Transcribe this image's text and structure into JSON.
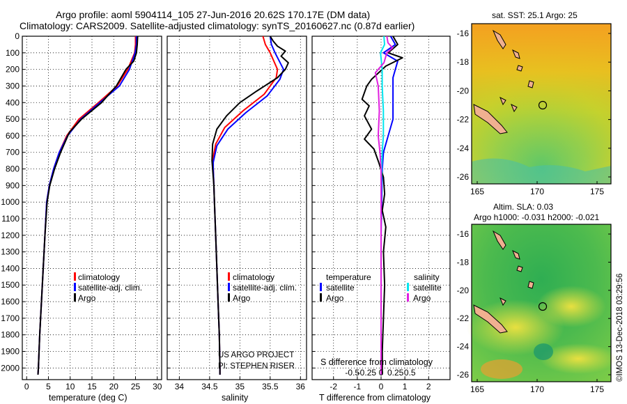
{
  "title": {
    "line1": "Argo profile: aoml 5904114_105 27-Jun-2016 20.62S 170.17E (DM data)",
    "line2": "Climatology: CARS2009. Satellite-adjusted climatology: synTS_20160627.nc (0.87d earlier)"
  },
  "colors": {
    "climatology": "#ff0000",
    "satellite": "#0000ff",
    "argo": "#000000",
    "sat_s": "#00e5ee",
    "argo_s": "#e020e0"
  },
  "depth_ticks": [
    "0",
    "100",
    "200",
    "300",
    "400",
    "500",
    "600",
    "700",
    "800",
    "900",
    "1000",
    "1100",
    "1200",
    "1300",
    "1400",
    "1500",
    "1600",
    "1700",
    "1800",
    "1900",
    "2000"
  ],
  "chart_data": [
    {
      "type": "line",
      "name": "temperature",
      "xlabel": "temperature (deg C)",
      "xlim": [
        -1,
        31
      ],
      "ylim": [
        2070,
        0
      ],
      "xticks": [
        "0",
        "5",
        "10",
        "15",
        "20",
        "25",
        "30"
      ],
      "legend": [
        "climatology",
        "satellite-adj. clim.",
        "Argo"
      ],
      "series": [
        {
          "name": "climatology",
          "points": [
            [
              25,
              0
            ],
            [
              25,
              50
            ],
            [
              24.8,
              100
            ],
            [
              23.2,
              200
            ],
            [
              20.8,
              300
            ],
            [
              16.5,
              400
            ],
            [
              12,
              500
            ],
            [
              9.2,
              600
            ],
            [
              7.5,
              700
            ],
            [
              6.2,
              800
            ],
            [
              5.2,
              900
            ],
            [
              4.6,
              1000
            ],
            [
              4.2,
              1200
            ],
            [
              3.8,
              1400
            ],
            [
              3.4,
              1600
            ],
            [
              3.0,
              1800
            ],
            [
              2.7,
              2000
            ],
            [
              2.6,
              2040
            ]
          ]
        },
        {
          "name": "satellite-adj. clim.",
          "points": [
            [
              25.2,
              0
            ],
            [
              25.2,
              50
            ],
            [
              24.9,
              100
            ],
            [
              23.6,
              200
            ],
            [
              21.3,
              300
            ],
            [
              16.8,
              400
            ],
            [
              12.4,
              500
            ],
            [
              9.4,
              600
            ],
            [
              7.5,
              700
            ],
            [
              6.2,
              800
            ],
            [
              5.2,
              900
            ],
            [
              4.6,
              1000
            ],
            [
              4.2,
              1200
            ],
            [
              3.8,
              1400
            ],
            [
              3.4,
              1600
            ],
            [
              3.0,
              1800
            ],
            [
              2.7,
              2000
            ],
            [
              2.6,
              2040
            ]
          ]
        },
        {
          "name": "Argo",
          "points": [
            [
              25.5,
              0
            ],
            [
              25.4,
              50
            ],
            [
              25.2,
              100
            ],
            [
              24.6,
              150
            ],
            [
              22.8,
              200
            ],
            [
              20.6,
              300
            ],
            [
              17.2,
              400
            ],
            [
              12.6,
              500
            ],
            [
              9.8,
              580
            ],
            [
              7.8,
              700
            ],
            [
              6.4,
              800
            ],
            [
              5.3,
              900
            ],
            [
              4.7,
              1000
            ],
            [
              4.2,
              1200
            ],
            [
              3.8,
              1400
            ],
            [
              3.4,
              1600
            ],
            [
              3.0,
              1800
            ],
            [
              2.7,
              2000
            ],
            [
              2.6,
              2040
            ]
          ]
        }
      ]
    },
    {
      "type": "line",
      "name": "salinity",
      "xlabel": "salinity",
      "xlim": [
        33.8,
        36.1
      ],
      "ylim": [
        2070,
        0
      ],
      "xticks": [
        "34",
        "34.5",
        "35",
        "35.5",
        "36"
      ],
      "legend": [
        "climatology",
        "satellite-adj. clim.",
        "Argo"
      ],
      "series": [
        {
          "name": "climatology",
          "points": [
            [
              35.38,
              0
            ],
            [
              35.42,
              50
            ],
            [
              35.5,
              100
            ],
            [
              35.62,
              200
            ],
            [
              35.6,
              250
            ],
            [
              35.4,
              350
            ],
            [
              35.05,
              450
            ],
            [
              34.75,
              550
            ],
            [
              34.6,
              650
            ],
            [
              34.55,
              750
            ],
            [
              34.56,
              800
            ],
            [
              34.57,
              900
            ],
            [
              34.58,
              1000
            ],
            [
              34.6,
              1200
            ],
            [
              34.62,
              1400
            ],
            [
              34.64,
              1600
            ],
            [
              34.66,
              1800
            ],
            [
              34.67,
              2000
            ],
            [
              34.67,
              2040
            ]
          ]
        },
        {
          "name": "satellite-adj. clim.",
          "points": [
            [
              35.5,
              0
            ],
            [
              35.52,
              50
            ],
            [
              35.58,
              100
            ],
            [
              35.72,
              200
            ],
            [
              35.66,
              260
            ],
            [
              35.45,
              360
            ],
            [
              35.1,
              460
            ],
            [
              34.8,
              560
            ],
            [
              34.62,
              660
            ],
            [
              34.56,
              760
            ],
            [
              34.56,
              800
            ],
            [
              34.57,
              900
            ],
            [
              34.58,
              1000
            ],
            [
              34.6,
              1200
            ],
            [
              34.62,
              1400
            ],
            [
              34.64,
              1600
            ],
            [
              34.66,
              1800
            ],
            [
              34.67,
              2000
            ],
            [
              34.67,
              2040
            ]
          ]
        },
        {
          "name": "Argo",
          "points": [
            [
              35.5,
              0
            ],
            [
              35.55,
              30
            ],
            [
              35.62,
              60
            ],
            [
              35.75,
              90
            ],
            [
              35.68,
              120
            ],
            [
              35.8,
              160
            ],
            [
              35.75,
              200
            ],
            [
              35.62,
              250
            ],
            [
              35.28,
              330
            ],
            [
              35.0,
              400
            ],
            [
              34.78,
              480
            ],
            [
              34.62,
              560
            ],
            [
              34.55,
              650
            ],
            [
              34.54,
              750
            ],
            [
              34.55,
              800
            ],
            [
              34.57,
              900
            ],
            [
              34.58,
              1000
            ],
            [
              34.6,
              1200
            ],
            [
              34.62,
              1400
            ],
            [
              34.64,
              1600
            ],
            [
              34.66,
              1800
            ],
            [
              34.67,
              2000
            ],
            [
              34.67,
              2040
            ]
          ]
        }
      ],
      "annotations": [
        "US ARGO PROJECT",
        "PI: STEPHEN RISER"
      ]
    },
    {
      "type": "line",
      "name": "differences",
      "xlabel": "T difference from climatology",
      "xlabel2": "S difference from climatology",
      "xlim": [
        -2.9,
        2.9
      ],
      "ylim": [
        2070,
        0
      ],
      "xticks": [
        "-2",
        "-1",
        "0",
        "1",
        "2"
      ],
      "xticks2": [
        "-0.5",
        "-0.25",
        "0",
        "0.25",
        "0.5"
      ],
      "legend_left_title": "temperature",
      "legend_right_title": "salinity",
      "legend_left": [
        "satellite",
        "Argo"
      ],
      "legend_right": [
        "satellite",
        "Argo"
      ],
      "series": [
        {
          "name": "T satellite",
          "points": [
            [
              0.4,
              0
            ],
            [
              0.6,
              50
            ],
            [
              0.1,
              100
            ],
            [
              0.7,
              150
            ],
            [
              0.5,
              250
            ],
            [
              0.5,
              400
            ],
            [
              0.5,
              500
            ],
            [
              0.3,
              600
            ],
            [
              0.1,
              700
            ],
            [
              0.05,
              800
            ],
            [
              0.02,
              1000
            ],
            [
              0,
              1200
            ],
            [
              0,
              2000
            ],
            [
              0,
              2040
            ]
          ]
        },
        {
          "name": "T Argo",
          "points": [
            [
              0.5,
              0
            ],
            [
              0.7,
              50
            ],
            [
              0.3,
              100
            ],
            [
              0.9,
              130
            ],
            [
              0.2,
              180
            ],
            [
              -0.4,
              260
            ],
            [
              -0.6,
              300
            ],
            [
              -0.8,
              380
            ],
            [
              -0.5,
              420
            ],
            [
              -0.7,
              480
            ],
            [
              -0.4,
              560
            ],
            [
              -0.7,
              620
            ],
            [
              -0.3,
              680
            ],
            [
              -0.1,
              760
            ],
            [
              0.1,
              850
            ],
            [
              0.15,
              950
            ],
            [
              0.05,
              1050
            ],
            [
              0.2,
              1150
            ],
            [
              0.1,
              1300
            ],
            [
              0.15,
              1500
            ],
            [
              0.1,
              1700
            ],
            [
              0.05,
              1900
            ],
            [
              0.05,
              2040
            ]
          ]
        },
        {
          "name": "S satellite",
          "points": [
            [
              0.05,
              0
            ],
            [
              0.06,
              50
            ],
            [
              -0.01,
              100
            ],
            [
              0.02,
              200
            ],
            [
              0.02,
              300
            ],
            [
              0.04,
              450
            ],
            [
              0.04,
              600
            ],
            [
              0.02,
              700
            ],
            [
              0.01,
              800
            ],
            [
              0,
              1000
            ],
            [
              0,
              2040
            ]
          ]
        },
        {
          "name": "S Argo",
          "points": [
            [
              0.1,
              0
            ],
            [
              0.12,
              40
            ],
            [
              0.2,
              70
            ],
            [
              0.1,
              100
            ],
            [
              0.05,
              160
            ],
            [
              -0.1,
              220
            ],
            [
              -0.05,
              300
            ],
            [
              -0.03,
              450
            ],
            [
              -0.05,
              600
            ],
            [
              -0.02,
              700
            ],
            [
              0,
              800
            ],
            [
              0,
              2040
            ]
          ]
        }
      ]
    }
  ],
  "map_top": {
    "title": "sat. SST: 25.1 Argo: 25",
    "yticks": [
      "-16",
      "-18",
      "-20",
      "-22",
      "-24",
      "-26"
    ],
    "xticks": [
      "165",
      "170",
      "175"
    ]
  },
  "map_bottom": {
    "title1": "Altim. SLA: 0.03",
    "title2": "Argo h1000: -0.031 h2000: -0.021",
    "yticks": [
      "-16",
      "-18",
      "-20",
      "-22",
      "-24",
      "-26"
    ],
    "xticks": [
      "165",
      "170",
      "175"
    ]
  },
  "footer": "©IMOS 13-Dec-2018 03:29:56"
}
